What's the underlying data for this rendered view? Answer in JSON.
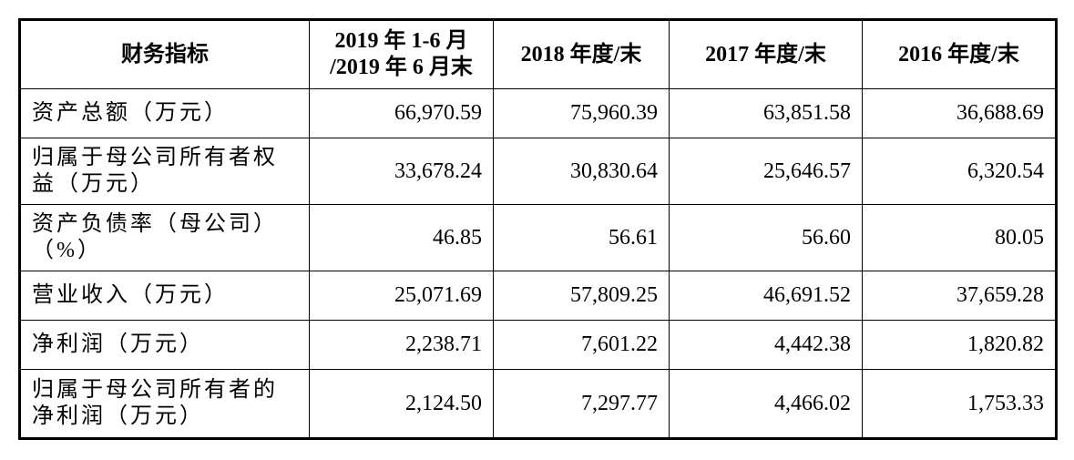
{
  "table": {
    "header": [
      "财务指标",
      "2019 年 1-6 月\n/2019 年 6 月末",
      "2018 年度/末",
      "2017 年度/末",
      "2016 年度/末"
    ],
    "rows": [
      [
        "资产总额（万元）",
        "66,970.59",
        "75,960.39",
        "63,851.58",
        "36,688.69"
      ],
      [
        "归属于母公司所有者权\n益（万元）",
        "33,678.24",
        "30,830.64",
        "25,646.57",
        "6,320.54"
      ],
      [
        "资产负债率（母公司）\n（%）",
        "46.85",
        "56.61",
        "56.60",
        "80.05"
      ],
      [
        "营业收入（万元）",
        "25,071.69",
        "57,809.25",
        "46,691.52",
        "37,659.28"
      ],
      [
        "净利润（万元）",
        "2,238.71",
        "7,601.22",
        "4,442.38",
        "1,820.82"
      ],
      [
        "归属于母公司所有者的\n净利润（万元）",
        "2,124.50",
        "7,297.77",
        "4,466.02",
        "1,753.33"
      ]
    ]
  }
}
